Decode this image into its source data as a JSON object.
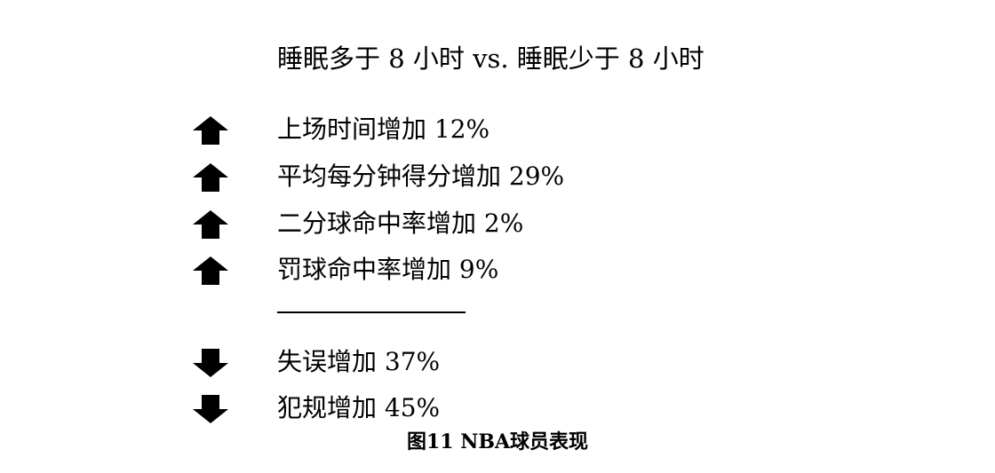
{
  "title": "睡眠多于 8 小时 vs. 睡眠少于 8 小时",
  "increases": [
    {
      "icon": "arrow-up-icon",
      "text": "上场时间增加 12%"
    },
    {
      "icon": "arrow-up-icon",
      "text": "平均每分钟得分增加 29%"
    },
    {
      "icon": "arrow-up-icon",
      "text": "二分球命中率增加 2%"
    },
    {
      "icon": "arrow-up-icon",
      "text": "罚球命中率增加 9%"
    }
  ],
  "decreases": [
    {
      "icon": "arrow-down-icon",
      "text": "失误增加 37%"
    },
    {
      "icon": "arrow-down-icon",
      "text": "犯规增加 45%"
    }
  ],
  "caption": "图11 NBA球员表现",
  "colors": {
    "text": "#000000",
    "background": "#ffffff"
  }
}
